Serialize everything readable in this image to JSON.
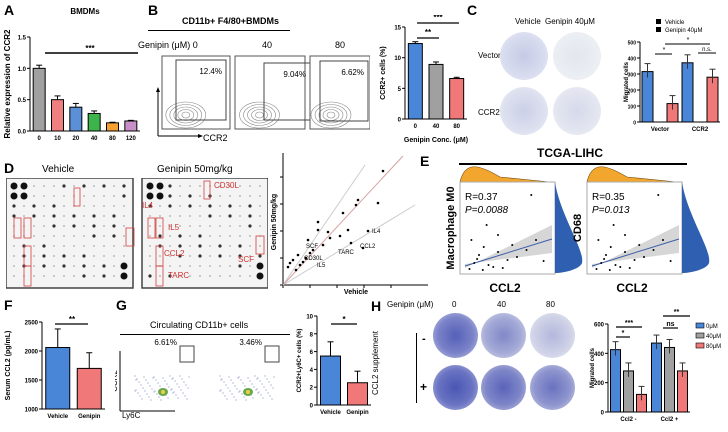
{
  "panels": {
    "A": {
      "label": "A"
    },
    "B": {
      "label": "B",
      "header": "CD11b+ F4/80+BMDMs",
      "genipin_label": "Genipin (μM) 0",
      "conc": [
        "40",
        "80"
      ],
      "gates": [
        "12.4%",
        "9.04%",
        "6.62%"
      ],
      "x_axis": "CCR2"
    },
    "C": {
      "label": "C",
      "columns": [
        "Vehicle",
        "Genipin 40μM"
      ],
      "rows": [
        "Vector",
        "CCR2"
      ]
    },
    "D": {
      "label": "D",
      "blots": [
        "Vehicle",
        "Genipin 50mg/kg"
      ],
      "annotations": [
        "CD30L",
        "IL4",
        "IL5",
        "CCL2",
        "TARC",
        "SCF"
      ]
    },
    "E": {
      "label": "E",
      "header": "TCGA-LIHC"
    },
    "F": {
      "label": "F"
    },
    "G": {
      "label": "G",
      "header": "Circulating CD11b+ cells",
      "gates": [
        "6.61%",
        "3.46%"
      ],
      "x_axis": "Ly6C",
      "y_axis": "CCR2"
    },
    "H": {
      "label": "H",
      "genipin_label": "Genipin (μM)",
      "conc": [
        "0",
        "40",
        "80"
      ],
      "row_title": "CCL2 supplement",
      "rows": [
        "-",
        "+"
      ]
    }
  },
  "chart_data": [
    {
      "id": "A",
      "type": "bar",
      "title": "BMDMs",
      "xlabel": "",
      "ylabel": "Relative expression of CCR2",
      "categories": [
        "0",
        "10",
        "20",
        "40",
        "80",
        "120"
      ],
      "values": [
        1.0,
        0.5,
        0.38,
        0.28,
        0.13,
        0.16
      ],
      "errors": [
        0.05,
        0.06,
        0.06,
        0.04,
        0.01,
        0.01
      ],
      "colors": [
        "#a0a0a0",
        "#f08080",
        "#5b8fd6",
        "#3cb44b",
        "#f5a030",
        "#c890c8"
      ],
      "ylim": [
        0,
        1.5
      ],
      "yticks": [
        "0.0",
        "0.5",
        "1.0",
        "1.5"
      ],
      "significance": "***"
    },
    {
      "id": "B-bar",
      "type": "bar",
      "xlabel": "Genipin Conc. (μM)",
      "ylabel": "CCR2+ cells (%)",
      "categories": [
        "0",
        "40",
        "80"
      ],
      "values": [
        12.3,
        8.9,
        6.6
      ],
      "errors": [
        0.3,
        0.4,
        0.2
      ],
      "colors": [
        "#4a86d8",
        "#a0a0a0",
        "#f07878"
      ],
      "ylim": [
        0,
        15
      ],
      "yticks": [
        "0",
        "5",
        "10",
        "15"
      ],
      "significance": [
        "**",
        "***"
      ]
    },
    {
      "id": "C-bar",
      "type": "bar",
      "ylabel": "Migrated cells",
      "categories": [
        "Vector",
        "CCR2"
      ],
      "series": [
        {
          "name": "Vehicle",
          "values": [
            315,
            370
          ],
          "color": "#4a86d8"
        },
        {
          "name": "Genipin 40μM",
          "values": [
            115,
            280
          ],
          "color": "#f07878"
        }
      ],
      "ylim": [
        0,
        500
      ],
      "yticks": [
        "0",
        "100",
        "200",
        "300",
        "400",
        "500"
      ],
      "legend": "top",
      "significance": [
        "*",
        "*",
        "n.s."
      ]
    },
    {
      "id": "D-scatter",
      "type": "scatter",
      "xlabel": "Vehicle",
      "ylabel": "Genipin 50mg/kg",
      "labels": [
        "IL4",
        "CCL2",
        "TARC",
        "SCF",
        "CD30L",
        "IL5"
      ]
    },
    {
      "id": "E-left",
      "type": "scatter",
      "xlabel": "CCL2",
      "ylabel": "Macrophage M0",
      "annotation": [
        "R=0.37",
        "P=0.0088"
      ]
    },
    {
      "id": "E-right",
      "type": "scatter",
      "xlabel": "CCL2",
      "ylabel": "CD68",
      "annotation": [
        "R=0.35",
        "P=0.013"
      ]
    },
    {
      "id": "F",
      "type": "bar",
      "ylabel": "Serum CCL2 (pg/mL)",
      "categories": [
        "Vehicle",
        "Genipin"
      ],
      "values": [
        2060,
        1700
      ],
      "errors": [
        320,
        270
      ],
      "colors": [
        "#4a86d8",
        "#f07878"
      ],
      "ylim": [
        1000,
        2500
      ],
      "yticks": [
        "1000",
        "1500",
        "2000",
        "2500"
      ],
      "significance": "**"
    },
    {
      "id": "G-bar",
      "type": "bar",
      "ylabel": "CCR2+Ly6C+ cells (%)",
      "categories": [
        "Vehicle",
        "Genipin"
      ],
      "values": [
        5.5,
        2.5
      ],
      "errors": [
        1.6,
        1.3
      ],
      "colors": [
        "#4a86d8",
        "#f07878"
      ],
      "ylim": [
        0,
        10
      ],
      "yticks": [
        "0",
        "2",
        "4",
        "6",
        "8",
        "10"
      ],
      "significance": "*"
    },
    {
      "id": "H-bar",
      "type": "bar",
      "ylabel": "Migrated cells",
      "categories": [
        "Ccl2 -",
        "Ccl2 +"
      ],
      "series": [
        {
          "name": "0μM",
          "values": [
            425,
            470
          ],
          "color": "#4a86d8"
        },
        {
          "name": "40μM",
          "values": [
            280,
            440
          ],
          "color": "#a0a0a0"
        },
        {
          "name": "80μM",
          "values": [
            120,
            280
          ],
          "color": "#f07878"
        }
      ],
      "ylim": [
        0,
        600
      ],
      "yticks": [
        "0",
        "200",
        "400",
        "600"
      ],
      "legend": "right",
      "significance": [
        "***",
        "*",
        "**",
        "ns"
      ]
    }
  ]
}
